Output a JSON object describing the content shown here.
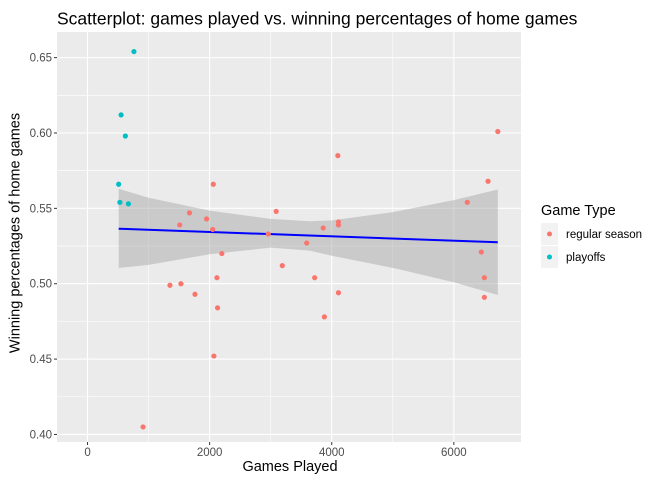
{
  "chart_data": {
    "type": "scatter",
    "title": "Scatterplot: games played vs. winning percentages of home games",
    "xlabel": "Games Played",
    "ylabel": "Winning percentages of home games",
    "xlim": [
      -500,
      7100
    ],
    "ylim": [
      0.395,
      0.667
    ],
    "xticks": [
      0,
      2000,
      4000,
      6000
    ],
    "xtick_labels": [
      "0",
      "2000",
      "4000",
      "6000"
    ],
    "yticks": [
      0.4,
      0.45,
      0.5,
      0.55,
      0.6,
      0.65
    ],
    "ytick_labels": [
      "0.40",
      "0.45",
      "0.50",
      "0.55",
      "0.60",
      "0.65"
    ],
    "grid": true,
    "legend": {
      "title": "Game Type",
      "position": "right"
    },
    "series": [
      {
        "name": "regular season",
        "color": "#F8766D",
        "points": [
          {
            "x": 910,
            "y": 0.405
          },
          {
            "x": 1350,
            "y": 0.499
          },
          {
            "x": 1510,
            "y": 0.539
          },
          {
            "x": 1530,
            "y": 0.5
          },
          {
            "x": 1670,
            "y": 0.547
          },
          {
            "x": 1760,
            "y": 0.493
          },
          {
            "x": 1950,
            "y": 0.543
          },
          {
            "x": 2050,
            "y": 0.536
          },
          {
            "x": 2060,
            "y": 0.566
          },
          {
            "x": 2070,
            "y": 0.452
          },
          {
            "x": 2120,
            "y": 0.504
          },
          {
            "x": 2130,
            "y": 0.484
          },
          {
            "x": 2200,
            "y": 0.52
          },
          {
            "x": 2960,
            "y": 0.533
          },
          {
            "x": 3090,
            "y": 0.548
          },
          {
            "x": 3190,
            "y": 0.512
          },
          {
            "x": 3590,
            "y": 0.527
          },
          {
            "x": 3720,
            "y": 0.504
          },
          {
            "x": 3860,
            "y": 0.537
          },
          {
            "x": 3880,
            "y": 0.478
          },
          {
            "x": 4100,
            "y": 0.585
          },
          {
            "x": 4110,
            "y": 0.541
          },
          {
            "x": 4110,
            "y": 0.539
          },
          {
            "x": 4110,
            "y": 0.494
          },
          {
            "x": 6220,
            "y": 0.554
          },
          {
            "x": 6450,
            "y": 0.521
          },
          {
            "x": 6500,
            "y": 0.504
          },
          {
            "x": 6500,
            "y": 0.491
          },
          {
            "x": 6560,
            "y": 0.568
          },
          {
            "x": 6720,
            "y": 0.601
          }
        ]
      },
      {
        "name": "playoffs",
        "color": "#00BFC4",
        "points": [
          {
            "x": 510,
            "y": 0.566
          },
          {
            "x": 530,
            "y": 0.554
          },
          {
            "x": 550,
            "y": 0.612
          },
          {
            "x": 620,
            "y": 0.598
          },
          {
            "x": 670,
            "y": 0.553
          },
          {
            "x": 760,
            "y": 0.654
          }
        ]
      }
    ],
    "smooth": {
      "method": "lm",
      "color": "#0000FF",
      "band_color": "#999999",
      "line": {
        "x": [
          510,
          6720
        ],
        "y": [
          0.5365,
          0.5275
        ]
      },
      "band": {
        "x": [
          510,
          1000,
          2000,
          3000,
          3640,
          4000,
          5000,
          6000,
          6720
        ],
        "upper": [
          0.563,
          0.557,
          0.5485,
          0.543,
          0.5415,
          0.542,
          0.5475,
          0.5555,
          0.5625
        ],
        "lower": [
          0.5105,
          0.5125,
          0.5195,
          0.524,
          0.522,
          0.5185,
          0.5105,
          0.501,
          0.4925
        ]
      }
    }
  }
}
